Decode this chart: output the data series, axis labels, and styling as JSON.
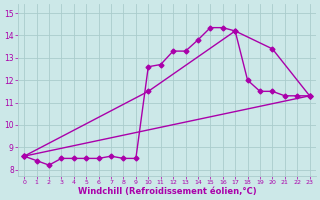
{
  "bg_color": "#cce8e8",
  "line_color": "#aa00aa",
  "grid_color": "#aacccc",
  "xlabel": "Windchill (Refroidissement éolien,°C)",
  "ylabel_ticks": [
    8,
    9,
    10,
    11,
    12,
    13,
    14,
    15
  ],
  "xlabel_ticks": [
    0,
    1,
    2,
    3,
    4,
    5,
    6,
    7,
    8,
    9,
    10,
    11,
    12,
    13,
    14,
    15,
    16,
    17,
    18,
    19,
    20,
    21,
    22,
    23
  ],
  "xlim": [
    -0.5,
    23.5
  ],
  "ylim": [
    7.7,
    15.4
  ],
  "line1_x": [
    0,
    1,
    2,
    3,
    4,
    5,
    6,
    7,
    8,
    9,
    10,
    11,
    12,
    13,
    14,
    15,
    16,
    17,
    18,
    19,
    20,
    21,
    22,
    23
  ],
  "line1_y": [
    8.6,
    8.4,
    8.2,
    8.5,
    8.5,
    8.5,
    8.5,
    8.6,
    8.5,
    8.5,
    12.6,
    12.7,
    13.3,
    13.3,
    13.8,
    14.35,
    14.35,
    14.2,
    12.0,
    11.5,
    11.5,
    11.3,
    11.3,
    11.3
  ],
  "line2_x": [
    0,
    10,
    17,
    20,
    23
  ],
  "line2_y": [
    8.6,
    11.5,
    14.2,
    13.4,
    11.3
  ],
  "line3_x": [
    0,
    23
  ],
  "line3_y": [
    8.6,
    11.3
  ],
  "marker": "D",
  "markersize": 2.5,
  "linewidth": 1.0
}
